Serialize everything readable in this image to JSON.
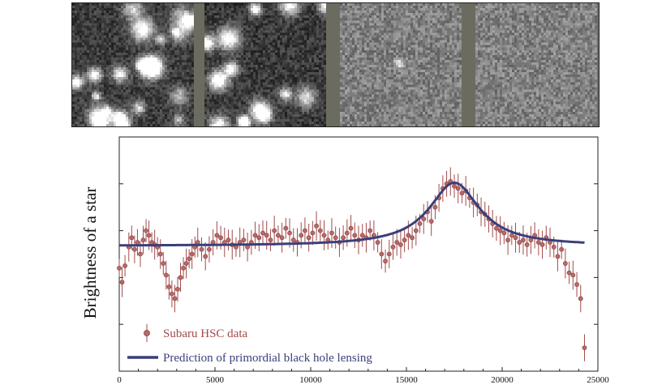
{
  "image_panels": [
    {
      "name": "panel-1",
      "background": "#3c3c3c",
      "stars": 22
    },
    {
      "name": "panel-2",
      "background": "#3a3a3a",
      "stars": 14
    },
    {
      "name": "panel-3",
      "background": "#808080",
      "stars": 1
    },
    {
      "name": "panel-4",
      "background": "#828282",
      "stars": 0
    }
  ],
  "chart_data": {
    "type": "scatter",
    "ylabel": "Brightness of a star",
    "xlabel": "",
    "xlim": [
      0,
      25000
    ],
    "ylim": [
      0,
      1
    ],
    "x_ticks": [
      0,
      5000,
      10000,
      15000,
      20000,
      25000
    ],
    "x_tick_labels": [
      "0",
      "5000",
      "10000",
      "15000",
      "20000",
      "25000"
    ],
    "legend": [
      {
        "label": "Subaru HSC data",
        "color": "#a24a4a",
        "marker": "circle-errorbar"
      },
      {
        "label": "Prediction of primordial black hole lensing",
        "color": "#3a3f7a",
        "marker": "line"
      }
    ],
    "legend_position": "bottom-left",
    "series": [
      {
        "name": "Subaru HSC data",
        "color": "#a24a4a",
        "points": [
          [
            0,
            0.44
          ],
          [
            150,
            0.38
          ],
          [
            300,
            0.45
          ],
          [
            500,
            0.53
          ],
          [
            650,
            0.57
          ],
          [
            800,
            0.52
          ],
          [
            950,
            0.55
          ],
          [
            1100,
            0.5
          ],
          [
            1250,
            0.56
          ],
          [
            1400,
            0.6
          ],
          [
            1550,
            0.58
          ],
          [
            1700,
            0.55
          ],
          [
            1850,
            0.54
          ],
          [
            2000,
            0.53
          ],
          [
            2150,
            0.5
          ],
          [
            2300,
            0.46
          ],
          [
            2450,
            0.41
          ],
          [
            2600,
            0.36
          ],
          [
            2750,
            0.33
          ],
          [
            2900,
            0.31
          ],
          [
            3050,
            0.35
          ],
          [
            3200,
            0.4
          ],
          [
            3350,
            0.44
          ],
          [
            3500,
            0.46
          ],
          [
            3650,
            0.48
          ],
          [
            3800,
            0.5
          ],
          [
            3950,
            0.53
          ],
          [
            4100,
            0.55
          ],
          [
            4300,
            0.52
          ],
          [
            4500,
            0.49
          ],
          [
            4700,
            0.52
          ],
          [
            4900,
            0.55
          ],
          [
            5100,
            0.58
          ],
          [
            5300,
            0.57
          ],
          [
            5500,
            0.55
          ],
          [
            5700,
            0.56
          ],
          [
            5900,
            0.54
          ],
          [
            6100,
            0.53
          ],
          [
            6300,
            0.55
          ],
          [
            6500,
            0.56
          ],
          [
            6700,
            0.53
          ],
          [
            6900,
            0.55
          ],
          [
            7100,
            0.58
          ],
          [
            7300,
            0.57
          ],
          [
            7500,
            0.59
          ],
          [
            7700,
            0.58
          ],
          [
            7900,
            0.56
          ],
          [
            8100,
            0.6
          ],
          [
            8300,
            0.58
          ],
          [
            8500,
            0.57
          ],
          [
            8700,
            0.61
          ],
          [
            8900,
            0.59
          ],
          [
            9100,
            0.56
          ],
          [
            9300,
            0.55
          ],
          [
            9500,
            0.58
          ],
          [
            9700,
            0.6
          ],
          [
            9900,
            0.57
          ],
          [
            10100,
            0.59
          ],
          [
            10300,
            0.62
          ],
          [
            10500,
            0.6
          ],
          [
            10700,
            0.58
          ],
          [
            10900,
            0.56
          ],
          [
            11100,
            0.59
          ],
          [
            11300,
            0.57
          ],
          [
            11500,
            0.55
          ],
          [
            11700,
            0.57
          ],
          [
            11900,
            0.59
          ],
          [
            12100,
            0.61
          ],
          [
            12300,
            0.58
          ],
          [
            12500,
            0.56
          ],
          [
            12700,
            0.58
          ],
          [
            12900,
            0.57
          ],
          [
            13100,
            0.6
          ],
          [
            13300,
            0.58
          ],
          [
            13500,
            0.55
          ],
          [
            13700,
            0.5
          ],
          [
            13900,
            0.47
          ],
          [
            14100,
            0.5
          ],
          [
            14300,
            0.53
          ],
          [
            14500,
            0.55
          ],
          [
            14700,
            0.54
          ],
          [
            14900,
            0.56
          ],
          [
            15100,
            0.58
          ],
          [
            15300,
            0.57
          ],
          [
            15500,
            0.6
          ],
          [
            15700,
            0.63
          ],
          [
            15900,
            0.65
          ],
          [
            16100,
            0.68
          ],
          [
            16300,
            0.64
          ],
          [
            16500,
            0.7
          ],
          [
            16700,
            0.74
          ],
          [
            16900,
            0.78
          ],
          [
            17100,
            0.8
          ],
          [
            17300,
            0.81
          ],
          [
            17500,
            0.79
          ],
          [
            17700,
            0.78
          ],
          [
            17900,
            0.76
          ],
          [
            18100,
            0.77
          ],
          [
            18300,
            0.74
          ],
          [
            18500,
            0.72
          ],
          [
            18700,
            0.71
          ],
          [
            18900,
            0.68
          ],
          [
            19100,
            0.67
          ],
          [
            19300,
            0.65
          ],
          [
            19500,
            0.63
          ],
          [
            19700,
            0.61
          ],
          [
            19900,
            0.6
          ],
          [
            20100,
            0.59
          ],
          [
            20300,
            0.56
          ],
          [
            20500,
            0.58
          ],
          [
            20700,
            0.57
          ],
          [
            20900,
            0.55
          ],
          [
            21100,
            0.56
          ],
          [
            21300,
            0.54
          ],
          [
            21500,
            0.56
          ],
          [
            21700,
            0.58
          ],
          [
            21900,
            0.55
          ],
          [
            22100,
            0.54
          ],
          [
            22300,
            0.57
          ],
          [
            22500,
            0.55
          ],
          [
            22700,
            0.53
          ],
          [
            22900,
            0.49
          ],
          [
            23100,
            0.52
          ],
          [
            23300,
            0.46
          ],
          [
            23500,
            0.42
          ],
          [
            23700,
            0.41
          ],
          [
            23900,
            0.37
          ],
          [
            24100,
            0.31
          ],
          [
            24300,
            0.1
          ]
        ],
        "yerr": 0.04
      },
      {
        "name": "Prediction of primordial black hole lensing",
        "color": "#3a3f7a",
        "model": {
          "baseline": 0.535,
          "t0": 17500,
          "amplitude": 0.27,
          "width": 1600
        },
        "x_range": [
          0,
          24300
        ]
      }
    ]
  }
}
